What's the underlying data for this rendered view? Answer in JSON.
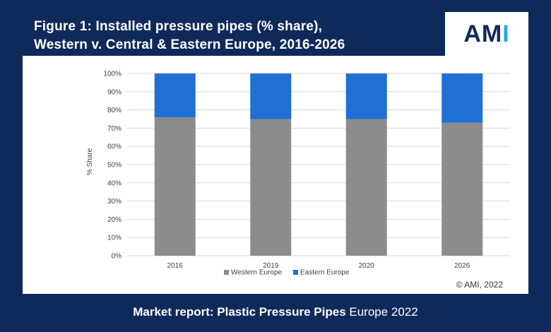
{
  "title_line1": "Figure 1: Installed pressure pipes (% share),",
  "title_line2": "Western v. Central & Eastern Europe, 2016-2026",
  "logo_main": "AM",
  "logo_accent": "I",
  "footer_bold": "Market report: Plastic Pressure Pipes",
  "footer_regular": " Europe 2022",
  "copyright": "© AMI, 2022",
  "colors": {
    "western": "#8c8c8c",
    "eastern": "#1f6fd4",
    "background": "#0f2a5a"
  },
  "chart_data": {
    "type": "bar",
    "stacked": true,
    "categories": [
      "2016",
      "2019",
      "2020",
      "2026"
    ],
    "series": [
      {
        "name": "Western Europe",
        "values": [
          76,
          75,
          75,
          73
        ]
      },
      {
        "name": "Eastern Europe",
        "values": [
          24,
          25,
          25,
          27
        ]
      }
    ],
    "ylabel": "% Share",
    "xlabel": "",
    "ylim": [
      0,
      100
    ],
    "yticks": [
      "0%",
      "10%",
      "20%",
      "30%",
      "40%",
      "50%",
      "60%",
      "70%",
      "80%",
      "90%",
      "100%"
    ],
    "grid": true,
    "legend": "bottom"
  }
}
